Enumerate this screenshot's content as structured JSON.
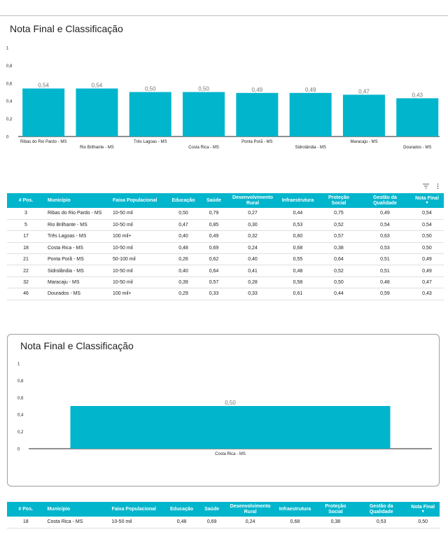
{
  "chart_data": [
    {
      "type": "bar",
      "title": "Nota Final e Classificação",
      "categories": [
        "Ribas do Rio Pardo - MS",
        "Rio Brilhante - MS",
        "Três Lagoas - MS",
        "Costa Rica - MS",
        "Ponta Porã - MS",
        "Sidrolândia - MS",
        "Maracaju - MS",
        "Dourados - MS"
      ],
      "values": [
        0.54,
        0.54,
        0.5,
        0.5,
        0.49,
        0.49,
        0.47,
        0.43
      ],
      "value_labels": [
        "0,54",
        "0,54",
        "0,50",
        "0,50",
        "0,49",
        "0,49",
        "0,47",
        "0,43"
      ],
      "yticks": [
        "0",
        "0,2",
        "0,4",
        "0,6",
        "0,8",
        "1"
      ],
      "ylim": [
        0,
        1
      ],
      "grid": false,
      "color": "#00b5cc"
    },
    {
      "type": "bar",
      "title": "Nota Final e Classificação",
      "categories": [
        "Costa Rica - MS"
      ],
      "values": [
        0.5
      ],
      "value_labels": [
        "0,50"
      ],
      "yticks": [
        "0",
        "0,2",
        "0,4",
        "0,6",
        "0,8",
        "1"
      ],
      "ylim": [
        0,
        1
      ],
      "grid": false,
      "color": "#00b5cc"
    }
  ],
  "table_tools": {
    "filter_icon": "filter-icon",
    "menu_icon": "more-vert-icon"
  },
  "tables": [
    {
      "columns": [
        "# Pos.",
        "Município",
        "Faixa Populacional",
        "Educação",
        "Saúde",
        "Desenvolvimento Rural",
        "Infraestrutura",
        "Proteção Social",
        "Gestão da Qualidade",
        "Nota Final"
      ],
      "rows": [
        [
          "3",
          "Ribas do Rio Pardo - MS",
          "10-50 mil",
          "0,50",
          "0,79",
          "0,27",
          "0,44",
          "0,75",
          "0,49",
          "0,54"
        ],
        [
          "5",
          "Rio Brilhante - MS",
          "10-50 mil",
          "0,47",
          "0,85",
          "0,30",
          "0,53",
          "0,52",
          "0,54",
          "0,54"
        ],
        [
          "17",
          "Três Lagoas - MS",
          "100 mil+",
          "0,40",
          "0,49",
          "0,32",
          "0,60",
          "0,57",
          "0,63",
          "0,50"
        ],
        [
          "18",
          "Costa Rica - MS",
          "10-50 mil",
          "0,48",
          "0,69",
          "0,24",
          "0,68",
          "0,38",
          "0,53",
          "0,50"
        ],
        [
          "21",
          "Ponta Porã - MS",
          "50-100 mil",
          "0,26",
          "0,62",
          "0,40",
          "0,55",
          "0,64",
          "0,51",
          "0,49"
        ],
        [
          "22",
          "Sidrolândia - MS",
          "10-50 mil",
          "0,40",
          "0,64",
          "0,41",
          "0,48",
          "0,52",
          "0,51",
          "0,49"
        ],
        [
          "32",
          "Maracaju - MS",
          "10-50 mil",
          "0,39",
          "0,57",
          "0,28",
          "0,58",
          "0,50",
          "0,48",
          "0,47"
        ],
        [
          "46",
          "Dourados - MS",
          "100 mil+",
          "0,29",
          "0,33",
          "0,33",
          "0,61",
          "0,44",
          "0,59",
          "0,43"
        ]
      ]
    },
    {
      "columns": [
        "# Pos.",
        "Município",
        "Faixa Populacional",
        "Educação",
        "Saúde",
        "Desenvolvimento Rural",
        "Infraestrutura",
        "Proteção Social",
        "Gestão da Qualidade",
        "Nota Final"
      ],
      "rows": [
        [
          "18",
          "Costa Rica - MS",
          "10-50 mil",
          "0,48",
          "0,69",
          "0,24",
          "0,68",
          "0,38",
          "0,53",
          "0,50"
        ]
      ]
    }
  ]
}
